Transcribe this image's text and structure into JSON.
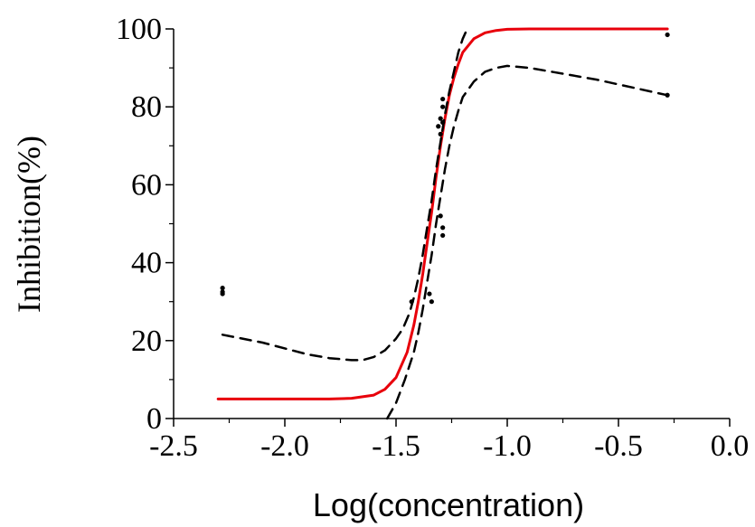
{
  "chart_data": {
    "type": "scatter",
    "title": "",
    "xlabel": "Log(concentration)",
    "ylabel": "Inhibition(%)",
    "xlim": [
      -2.5,
      0.0
    ],
    "ylim": [
      0,
      100
    ],
    "x_ticks": [
      -2.5,
      -2.0,
      -1.5,
      -1.0,
      -0.5,
      0.0
    ],
    "x_tick_labels": [
      "-2.5",
      "-2.0",
      "-1.5",
      "-1.0",
      "-0.5",
      "0.0"
    ],
    "y_ticks": [
      0,
      20,
      40,
      60,
      80,
      100
    ],
    "y_tick_labels": [
      "0",
      "20",
      "40",
      "60",
      "80",
      "100"
    ],
    "grid": false,
    "legend": "none",
    "colors": {
      "fit": "#e8000b",
      "confidence": "#000000",
      "points": "#000000"
    },
    "series": [
      {
        "kind": "points",
        "x": [
          -2.28,
          -2.28,
          -2.28,
          -1.43,
          -1.35,
          -1.34,
          -1.31,
          -1.3,
          -1.3,
          -1.3,
          -1.29,
          -1.29,
          -1.29,
          -1.29,
          -1.29,
          -0.28,
          -0.28
        ],
        "y": [
          33.5,
          32.5,
          32.0,
          30.0,
          32.0,
          30.0,
          75.0,
          77.0,
          73.0,
          52.0,
          49.0,
          47.0,
          80.0,
          82.0,
          76.0,
          98.5,
          83.0
        ]
      },
      {
        "kind": "fit",
        "line_style": "solid",
        "x": [
          -2.3,
          -2.0,
          -1.8,
          -1.7,
          -1.6,
          -1.55,
          -1.5,
          -1.45,
          -1.42,
          -1.4,
          -1.38,
          -1.36,
          -1.34,
          -1.32,
          -1.3,
          -1.28,
          -1.26,
          -1.24,
          -1.22,
          -1.2,
          -1.15,
          -1.1,
          -1.05,
          -1.0,
          -0.9,
          -0.8,
          -0.5,
          -0.28
        ],
        "y": [
          5,
          5,
          5,
          5.2,
          6,
          7.5,
          10.5,
          17,
          24,
          30,
          37,
          45,
          53,
          62,
          70,
          77,
          83,
          87.5,
          91,
          94,
          97.5,
          99,
          99.6,
          99.9,
          100,
          100,
          100,
          100
        ]
      },
      {
        "kind": "confidence-upper",
        "line_style": "dashed",
        "x": [
          -2.28,
          -2.1,
          -1.9,
          -1.8,
          -1.7,
          -1.65,
          -1.6,
          -1.55,
          -1.5,
          -1.47,
          -1.44,
          -1.42,
          -1.4,
          -1.38,
          -1.36,
          -1.34,
          -1.32,
          -1.3,
          -1.28,
          -1.26,
          -1.24,
          -1.22,
          -1.2,
          -1.18
        ],
        "y": [
          21.5,
          19.5,
          16.5,
          15.5,
          15,
          15,
          15.8,
          17.5,
          20.5,
          23,
          27,
          31,
          36,
          42,
          49,
          56,
          64,
          71,
          78,
          84,
          89,
          94,
          97.5,
          100
        ]
      },
      {
        "kind": "confidence-lower",
        "line_style": "dashed",
        "x": [
          -1.54,
          -1.5,
          -1.46,
          -1.42,
          -1.4,
          -1.38,
          -1.36,
          -1.34,
          -1.32,
          -1.3,
          -1.28,
          -1.26,
          -1.24,
          -1.22,
          -1.2,
          -1.15,
          -1.1,
          -1.05,
          -1.0,
          -0.9,
          -0.8,
          -0.6,
          -0.4,
          -0.28
        ],
        "y": [
          0,
          4,
          10,
          17,
          22,
          28,
          35,
          42,
          50,
          57,
          64,
          70,
          75,
          79,
          82.5,
          86.5,
          89,
          90,
          90.5,
          90,
          89,
          87,
          84.5,
          83
        ]
      }
    ]
  }
}
